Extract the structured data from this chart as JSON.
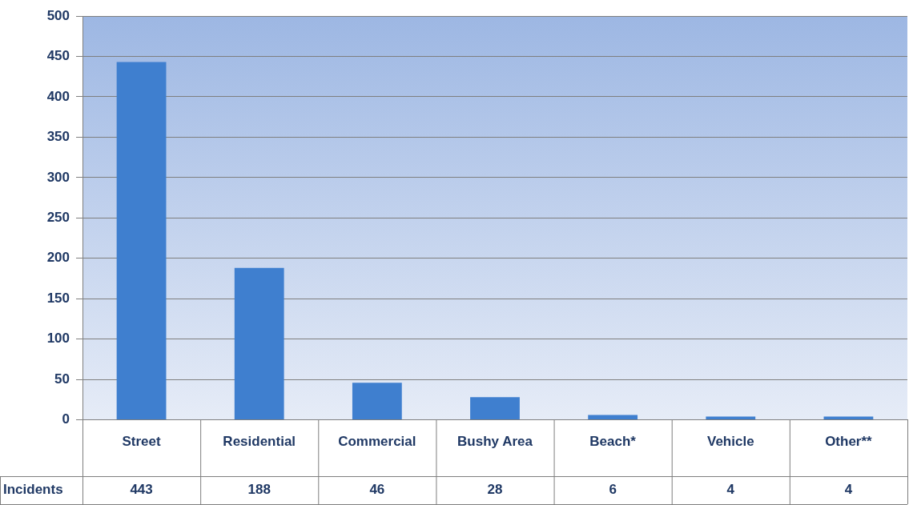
{
  "chart_data": {
    "type": "bar",
    "categories": [
      "Street",
      "Residential",
      "Commercial",
      "Bushy Area",
      "Beach*",
      "Vehicle",
      "Other**"
    ],
    "series": [
      {
        "name": "Incidents",
        "color": "#3f7fcf",
        "values": [
          443,
          188,
          46,
          28,
          6,
          4,
          4
        ]
      }
    ],
    "ylim": [
      0,
      500
    ],
    "yticks": [
      0,
      50,
      100,
      150,
      200,
      250,
      300,
      350,
      400,
      450,
      500
    ],
    "grid": "y",
    "legend": false,
    "data_labels": true
  }
}
